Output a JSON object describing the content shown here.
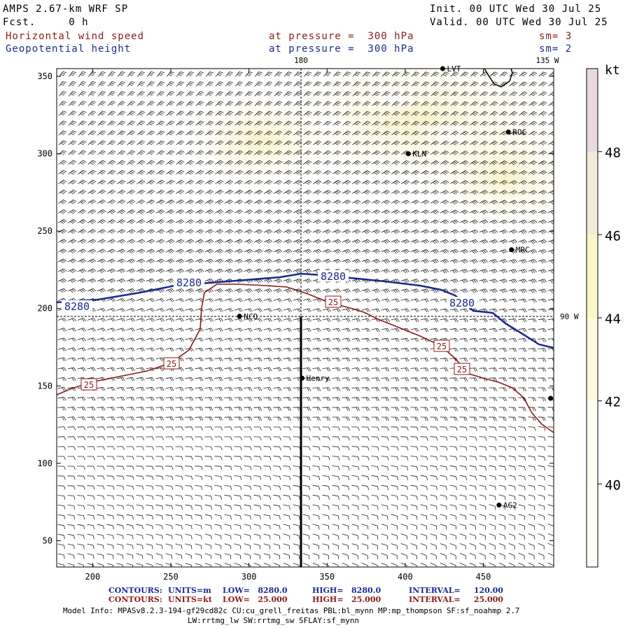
{
  "header": {
    "model": "AMPS 2.67-km WRF SP",
    "forecast": "Fcst.     0 h",
    "init": "Init. 00 UTC Wed 30 Jul 25",
    "valid": "Valid. 00 UTC Wed 30 Jul 25",
    "field1": "Horizontal wind speed",
    "field2": "Geopotential height",
    "level1": "at pressure =  300 hPa",
    "level2": "at pressure =  300 hPa",
    "smooth1": "sm= 3",
    "smooth2": "sm= 2"
  },
  "map": {
    "meridian_180": "180",
    "meridian_135w": "135 W",
    "parallel_90w": "90 W",
    "x_ticks": [
      "200",
      "250",
      "300",
      "350",
      "400",
      "450"
    ],
    "y_ticks": [
      "50",
      "100",
      "150",
      "200",
      "250",
      "300",
      "350"
    ],
    "x_tick_values": [
      200,
      250,
      300,
      350,
      400,
      450
    ],
    "y_tick_values": [
      50,
      100,
      150,
      200,
      250,
      300,
      350
    ],
    "x_range": [
      177,
      495
    ],
    "y_range": [
      33,
      355
    ],
    "stations": [
      {
        "id": "LVT",
        "label": "LVT",
        "x": 424,
        "y": 355
      },
      {
        "id": "ROC",
        "label": "ROC",
        "x": 466,
        "y": 314
      },
      {
        "id": "KLN",
        "label": "KLN",
        "x": 402,
        "y": 300
      },
      {
        "id": "MRC",
        "label": "MRC",
        "x": 468,
        "y": 238
      },
      {
        "id": "NCO",
        "label": "NCO",
        "x": 294,
        "y": 195
      },
      {
        "id": "HENRY",
        "label": "Henry",
        "x": 334,
        "y": 155
      },
      {
        "id": "AG2",
        "label": "AG2",
        "x": 460,
        "y": 73
      },
      {
        "id": "EDGE",
        "label": "",
        "x": 493,
        "y": 142
      }
    ],
    "height_contour_label": "8280",
    "speed_contour_label": "25",
    "height_contour_value": 8280,
    "speed_contour_value": 25
  },
  "colorbar": {
    "unit": "kt",
    "labels": [
      "40",
      "42",
      "44",
      "46",
      "48"
    ],
    "colors": [
      "#fffff2",
      "#fefbdc",
      "#fbf5c8",
      "#f4ead8",
      "#ead9dd"
    ]
  },
  "footer": {
    "c1_head": "CONTOURS:",
    "c1_units": "UNITS=m",
    "c1_low": "LOW=   8280.0",
    "c1_high": "HIGH=   8280.0",
    "c1_interval": "INTERVAL=     120.00",
    "c2_head": "CONTOURS:",
    "c2_units": "UNITS=kt",
    "c2_low": "LOW=   25.000",
    "c2_high": "HIGH=   25.000",
    "c2_interval": "INTERVAL=     25.000",
    "model_info": "Model Info: MPASv8.2.3-194-gf29cd82c CU:cu_grell_freitas PBL:bl_mynn MP:mp_thompson SF:sf_noahmp 2.7",
    "model_info2": "LW:rrtmg_lw SW:rrtmg_sw SFLAY:sf_mynn"
  },
  "style": {
    "height_contour_color": "#1b2a8f",
    "speed_contour_color": "#8b1a1a"
  }
}
